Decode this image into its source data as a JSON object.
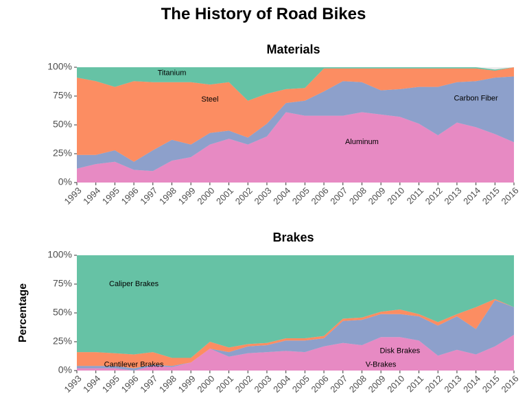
{
  "title": "The History of Road Bikes",
  "ylabel": "Percentage",
  "colors": {
    "aluminum": "#E78AC3",
    "carbon_fiber": "#8DA0CB",
    "steel": "#FC8D62",
    "titanium": "#66C2A5",
    "v_brakes": "#E78AC3",
    "disk_brakes": "#8DA0CB",
    "cantilever_brakes": "#FC8D62",
    "caliper_brakes": "#66C2A5",
    "background": "#EBEBEB",
    "tick_text": "#4d4d4d"
  },
  "chart_data": [
    {
      "type": "area",
      "stacked": true,
      "title": "Materials",
      "x": [
        "1993",
        "1994",
        "1995",
        "1996",
        "1997",
        "1998",
        "1999",
        "2000",
        "2001",
        "2002",
        "2003",
        "2004",
        "2005",
        "2006",
        "2007",
        "2008",
        "2009",
        "2010",
        "2011",
        "2012",
        "2013",
        "2014",
        "2015",
        "2016"
      ],
      "ylim": [
        0,
        100
      ],
      "yticks": [
        "0%",
        "25%",
        "50%",
        "75%",
        "100%"
      ],
      "series": [
        {
          "name": "Aluminum",
          "color_key": "aluminum",
          "label_at": "2008",
          "label_y": 35,
          "values": [
            12,
            16,
            18,
            11,
            10,
            19,
            22,
            33,
            38,
            33,
            40,
            61,
            58,
            58,
            58,
            61,
            59,
            57,
            51,
            41,
            52,
            48,
            42,
            35
          ]
        },
        {
          "name": "Carbon Fiber",
          "color_key": "carbon_fiber",
          "label_at": "2014",
          "label_y": 73,
          "values": [
            12,
            8,
            10,
            7,
            18,
            18,
            11,
            10,
            7,
            6,
            11,
            8,
            13,
            21,
            30,
            26,
            21,
            24,
            32,
            42,
            35,
            40,
            49,
            57
          ]
        },
        {
          "name": "Steel",
          "color_key": "steel",
          "label_at": "2000",
          "label_y": 72,
          "values": [
            67,
            64,
            55,
            70,
            59,
            50,
            54,
            42,
            42,
            32,
            26,
            12,
            11,
            20,
            11,
            12,
            19,
            18,
            16,
            16,
            12,
            11,
            6,
            8
          ]
        },
        {
          "name": "Titanium",
          "color_key": "titanium",
          "label_at": "1998",
          "label_y": 95,
          "values": [
            9,
            12,
            17,
            12,
            13,
            13,
            13,
            15,
            13,
            29,
            23,
            19,
            18,
            1,
            1,
            1,
            1,
            1,
            1,
            1,
            1,
            1,
            1,
            0
          ]
        }
      ]
    },
    {
      "type": "area",
      "stacked": true,
      "title": "Brakes",
      "x": [
        "1993",
        "1994",
        "1995",
        "1996",
        "1997",
        "1998",
        "1999",
        "2000",
        "2001",
        "2002",
        "2003",
        "2004",
        "2005",
        "2006",
        "2007",
        "2008",
        "2009",
        "2010",
        "2011",
        "2012",
        "2013",
        "2014",
        "2015",
        "2016"
      ],
      "ylim": [
        0,
        100
      ],
      "yticks": [
        "0%",
        "25%",
        "50%",
        "75%",
        "100%"
      ],
      "series": [
        {
          "name": "V-Brakes",
          "color_key": "v_brakes",
          "label_at": "2009",
          "label_y": 5,
          "values": [
            2,
            2,
            2,
            0,
            4,
            3,
            7,
            19,
            12,
            15,
            16,
            17,
            16,
            21,
            24,
            22,
            29,
            29,
            26,
            13,
            18,
            14,
            21,
            31
          ]
        },
        {
          "name": "Disk Brakes",
          "color_key": "disk_brakes",
          "label_at": "2010",
          "label_y": 17,
          "values": [
            2,
            2,
            2,
            2,
            1,
            1,
            0,
            0,
            4,
            6,
            6,
            9,
            10,
            7,
            19,
            22,
            20,
            20,
            21,
            26,
            29,
            22,
            40,
            24
          ]
        },
        {
          "name": "Cantilever Brakes",
          "color_key": "cantilever_brakes",
          "label_at": "1996",
          "label_y": 5,
          "values": [
            12,
            12,
            11,
            12,
            11,
            7,
            4,
            6,
            4,
            2,
            2,
            2,
            2,
            2,
            2,
            2,
            2,
            4,
            2,
            3,
            2,
            19,
            1,
            0
          ]
        },
        {
          "name": "Caliper Brakes",
          "color_key": "caliper_brakes",
          "label_at": "1996",
          "label_y": 75,
          "values": [
            84,
            84,
            85,
            86,
            84,
            89,
            89,
            75,
            80,
            77,
            76,
            72,
            72,
            70,
            55,
            54,
            49,
            47,
            51,
            58,
            51,
            45,
            38,
            45
          ]
        }
      ]
    }
  ]
}
